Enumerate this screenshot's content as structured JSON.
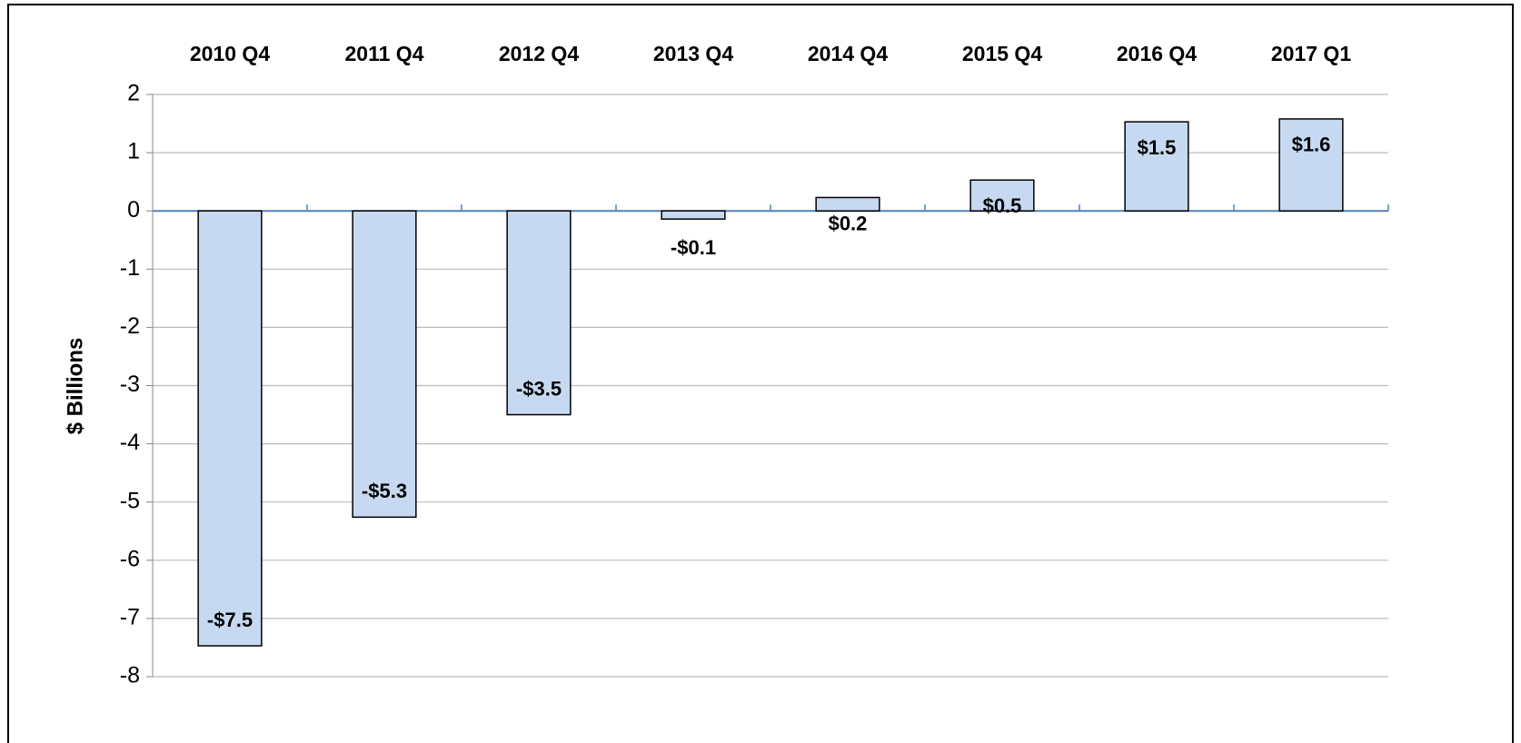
{
  "chart_data": {
    "type": "bar",
    "y_label": "$ Billions",
    "categories": [
      "2010 Q4",
      "2011 Q4",
      "2012 Q4",
      "2013 Q4",
      "2014 Q4",
      "2015 Q4",
      "2016 Q4",
      "2017 Q1"
    ],
    "values": [
      -7.47,
      -5.26,
      -3.5,
      -0.14,
      0.23,
      0.53,
      1.53,
      1.58
    ],
    "value_labels": [
      "-$7.5",
      "-$5.3",
      "-$3.5",
      "-$0.1",
      "$0.2",
      "$0.5",
      "$1.5",
      "$1.6"
    ],
    "color": "#c6d9f1",
    "ylim": [
      -8,
      2
    ],
    "yticks": [
      -8,
      -7,
      -6,
      -5,
      -4,
      -3,
      -2,
      -1,
      0,
      1,
      2
    ],
    "grid": true
  }
}
